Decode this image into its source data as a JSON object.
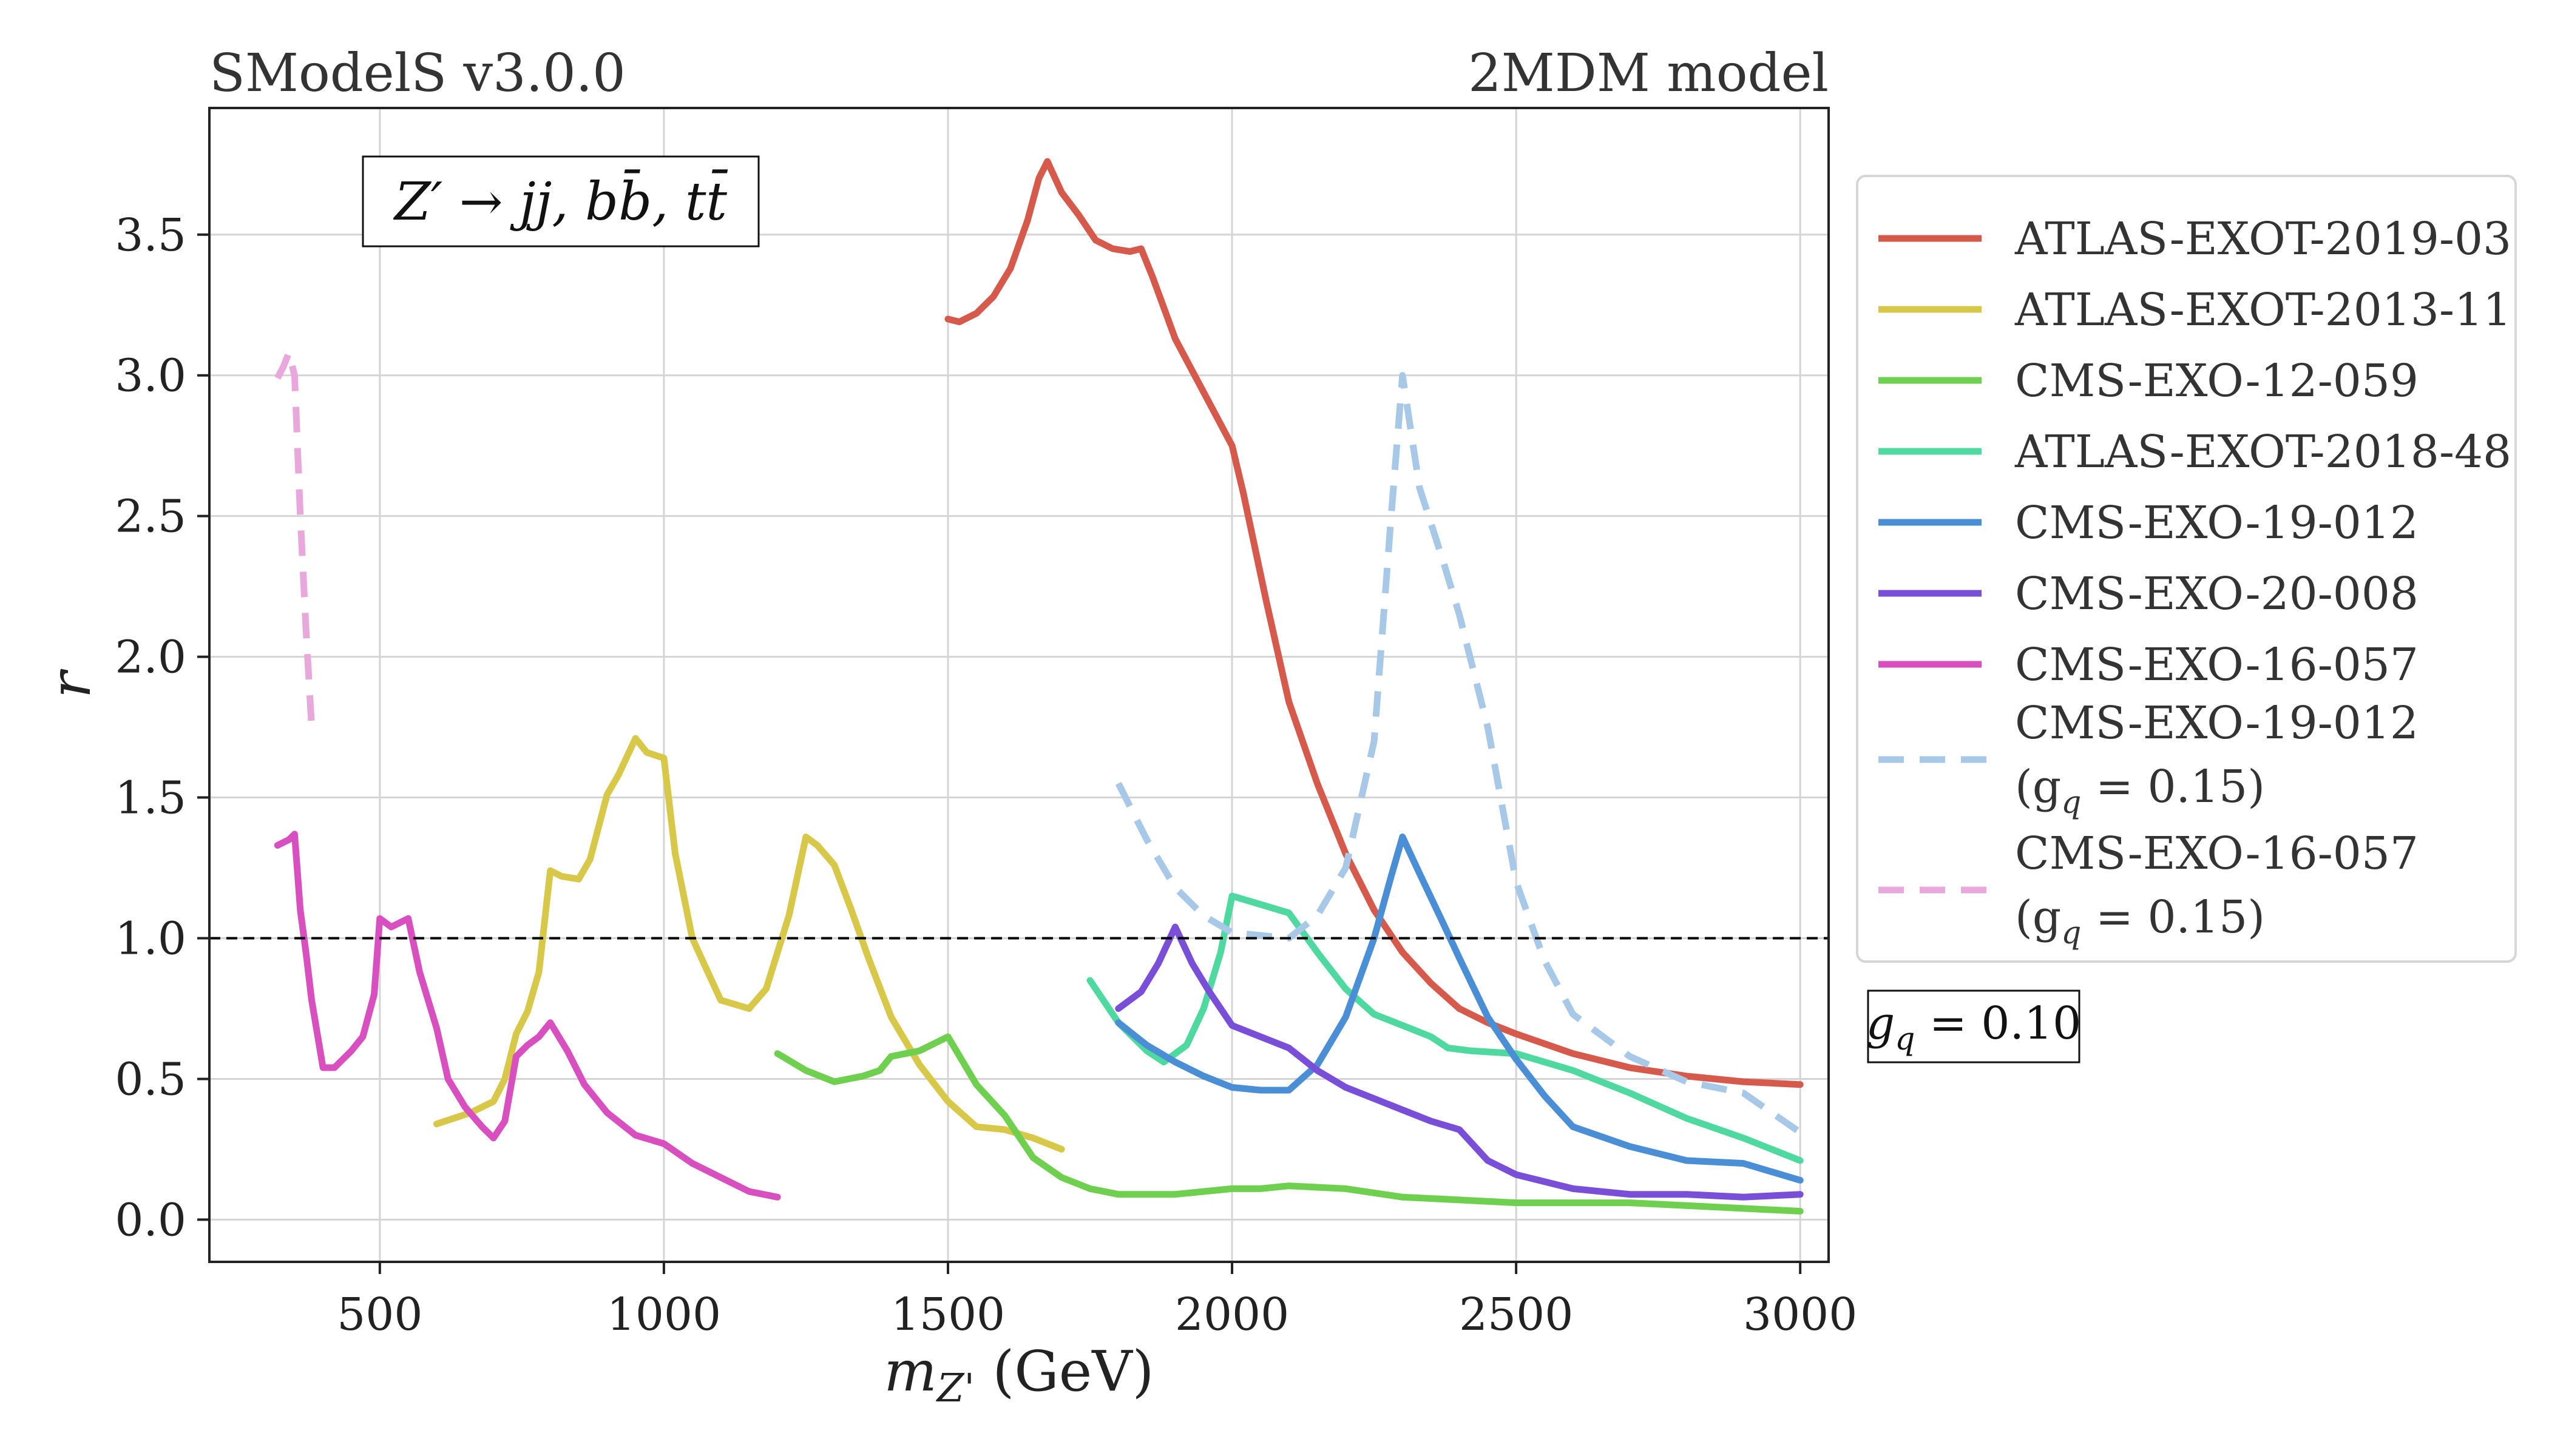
{
  "chart_data": {
    "type": "line",
    "title_left": "SModelS v3.0.0",
    "title_right": "2MDM model",
    "xlabel": "m_{Z'} (GeV)",
    "ylabel": "r",
    "xlim": [
      200,
      3050
    ],
    "ylim": [
      -0.15,
      3.95
    ],
    "xticks": [
      500,
      1000,
      1500,
      2000,
      2500,
      3000
    ],
    "yticks": [
      0.0,
      0.5,
      1.0,
      1.5,
      2.0,
      2.5,
      3.0,
      3.5
    ],
    "grid": true,
    "legend_position": "outside-right",
    "reference_line": {
      "y": 1.0,
      "style": "dashed",
      "color": "#000000"
    },
    "annotation": "Z′ → jj, bb̄, tt̄",
    "note": "g_q = 0.10",
    "series": [
      {
        "name": "ATLAS-EXOT-2019-03",
        "color": "#d65a4c",
        "dash": false,
        "x": [
          1500,
          1520,
          1550,
          1580,
          1610,
          1640,
          1660,
          1675,
          1700,
          1730,
          1760,
          1790,
          1820,
          1840,
          1860,
          1900,
          1950,
          2000,
          2020,
          2060,
          2100,
          2150,
          2200,
          2250,
          2300,
          2350,
          2400,
          2450,
          2500,
          2600,
          2700,
          2800,
          2900,
          3000
        ],
        "y": [
          3.2,
          3.19,
          3.22,
          3.28,
          3.38,
          3.55,
          3.7,
          3.76,
          3.65,
          3.57,
          3.48,
          3.45,
          3.44,
          3.45,
          3.35,
          3.13,
          2.94,
          2.75,
          2.58,
          2.2,
          1.84,
          1.55,
          1.3,
          1.1,
          0.95,
          0.84,
          0.75,
          0.7,
          0.66,
          0.59,
          0.54,
          0.51,
          0.49,
          0.48
        ]
      },
      {
        "name": "ATLAS-EXOT-2013-11",
        "color": "#d8c84a",
        "dash": false,
        "x": [
          600,
          630,
          660,
          700,
          720,
          740,
          760,
          780,
          800,
          820,
          850,
          870,
          900,
          920,
          950,
          970,
          1000,
          1020,
          1050,
          1100,
          1150,
          1180,
          1220,
          1250,
          1270,
          1300,
          1330,
          1360,
          1400,
          1450,
          1500,
          1550,
          1600,
          1650,
          1700
        ],
        "y": [
          0.34,
          0.36,
          0.38,
          0.42,
          0.5,
          0.66,
          0.74,
          0.88,
          1.24,
          1.22,
          1.21,
          1.28,
          1.51,
          1.58,
          1.71,
          1.66,
          1.64,
          1.3,
          1.0,
          0.78,
          0.75,
          0.82,
          1.08,
          1.36,
          1.33,
          1.26,
          1.1,
          0.93,
          0.72,
          0.55,
          0.42,
          0.33,
          0.32,
          0.29,
          0.25
        ]
      },
      {
        "name": "CMS-EXO-12-059",
        "color": "#6fcf4f",
        "dash": false,
        "x": [
          1200,
          1250,
          1300,
          1350,
          1380,
          1400,
          1450,
          1490,
          1500,
          1550,
          1600,
          1650,
          1700,
          1750,
          1800,
          1900,
          2000,
          2050,
          2100,
          2200,
          2300,
          2400,
          2500,
          2600,
          2700,
          2800,
          2900,
          3000
        ],
        "y": [
          0.59,
          0.53,
          0.49,
          0.51,
          0.53,
          0.58,
          0.6,
          0.64,
          0.65,
          0.48,
          0.37,
          0.22,
          0.15,
          0.11,
          0.09,
          0.09,
          0.11,
          0.11,
          0.12,
          0.11,
          0.08,
          0.07,
          0.06,
          0.06,
          0.06,
          0.05,
          0.04,
          0.03
        ]
      },
      {
        "name": "ATLAS-EXOT-2018-48",
        "color": "#4fd8a0",
        "dash": false,
        "x": [
          1750,
          1800,
          1850,
          1880,
          1920,
          1950,
          1980,
          2000,
          2050,
          2100,
          2150,
          2200,
          2250,
          2300,
          2350,
          2380,
          2420,
          2500,
          2600,
          2700,
          2800,
          2900,
          3000
        ],
        "y": [
          0.85,
          0.7,
          0.6,
          0.56,
          0.62,
          0.75,
          0.95,
          1.15,
          1.12,
          1.09,
          0.95,
          0.82,
          0.73,
          0.69,
          0.65,
          0.61,
          0.6,
          0.59,
          0.53,
          0.45,
          0.36,
          0.29,
          0.21
        ]
      },
      {
        "name": "CMS-EXO-19-012",
        "color": "#4a8fd6",
        "dash": false,
        "x": [
          1800,
          1850,
          1900,
          1950,
          2000,
          2050,
          2100,
          2150,
          2200,
          2250,
          2280,
          2300,
          2330,
          2370,
          2400,
          2450,
          2500,
          2550,
          2600,
          2700,
          2800,
          2900,
          3000
        ],
        "y": [
          0.7,
          0.62,
          0.56,
          0.51,
          0.47,
          0.46,
          0.46,
          0.55,
          0.72,
          1.0,
          1.22,
          1.36,
          1.23,
          1.06,
          0.93,
          0.72,
          0.57,
          0.44,
          0.33,
          0.26,
          0.21,
          0.2,
          0.14
        ]
      },
      {
        "name": "CMS-EXO-20-008",
        "color": "#7a4fd8",
        "dash": false,
        "x": [
          1800,
          1840,
          1870,
          1900,
          1930,
          1960,
          2000,
          2050,
          2100,
          2150,
          2200,
          2250,
          2300,
          2350,
          2400,
          2450,
          2500,
          2600,
          2700,
          2800,
          2900,
          3000
        ],
        "y": [
          0.75,
          0.81,
          0.91,
          1.04,
          0.91,
          0.81,
          0.69,
          0.65,
          0.61,
          0.53,
          0.47,
          0.43,
          0.39,
          0.35,
          0.32,
          0.21,
          0.16,
          0.11,
          0.09,
          0.09,
          0.08,
          0.09
        ]
      },
      {
        "name": "CMS-EXO-16-057",
        "color": "#d84fc0",
        "dash": false,
        "x": [
          320,
          340,
          350,
          360,
          370,
          380,
          400,
          420,
          450,
          470,
          490,
          500,
          520,
          540,
          550,
          570,
          600,
          620,
          650,
          680,
          700,
          720,
          740,
          760,
          780,
          800,
          830,
          860,
          900,
          950,
          1000,
          1050,
          1100,
          1150,
          1200
        ],
        "y": [
          1.33,
          1.35,
          1.37,
          1.1,
          0.95,
          0.78,
          0.54,
          0.54,
          0.6,
          0.65,
          0.8,
          1.07,
          1.04,
          1.06,
          1.07,
          0.88,
          0.68,
          0.5,
          0.4,
          0.33,
          0.29,
          0.35,
          0.58,
          0.62,
          0.65,
          0.7,
          0.6,
          0.48,
          0.38,
          0.3,
          0.27,
          0.2,
          0.15,
          0.1,
          0.08
        ]
      },
      {
        "name": "CMS-EXO-19-012 (g_q = 0.15)",
        "color": "#a8c8e8",
        "dash": true,
        "x": [
          1800,
          1850,
          1900,
          1950,
          2000,
          2050,
          2100,
          2150,
          2200,
          2250,
          2280,
          2300,
          2330,
          2370,
          2400,
          2450,
          2500,
          2550,
          2600,
          2700,
          2800,
          2900,
          3000
        ],
        "y": [
          1.55,
          1.35,
          1.18,
          1.08,
          1.02,
          1.01,
          1.0,
          1.08,
          1.25,
          1.7,
          2.5,
          3.0,
          2.6,
          2.35,
          2.15,
          1.75,
          1.2,
          0.92,
          0.73,
          0.58,
          0.49,
          0.45,
          0.31
        ]
      },
      {
        "name": "CMS-EXO-16-057 (g_q = 0.15)",
        "color": "#e8a8dc",
        "dash": true,
        "x": [
          320,
          330,
          340,
          350,
          360,
          370,
          380
        ],
        "y": [
          2.99,
          3.03,
          3.08,
          3.0,
          2.5,
          2.1,
          1.75
        ]
      }
    ]
  },
  "legend_entries": [
    {
      "label": "ATLAS-EXOT-2019-03"
    },
    {
      "label": "ATLAS-EXOT-2013-11"
    },
    {
      "label": "CMS-EXO-12-059"
    },
    {
      "label": "ATLAS-EXOT-2018-48"
    },
    {
      "label": "CMS-EXO-19-012"
    },
    {
      "label": "CMS-EXO-20-008"
    },
    {
      "label": "CMS-EXO-16-057"
    },
    {
      "label": "CMS-EXO-19-012",
      "sub": "(g_q = 0.15)"
    },
    {
      "label": "CMS-EXO-16-057",
      "sub": "(g_q = 0.15)"
    }
  ]
}
